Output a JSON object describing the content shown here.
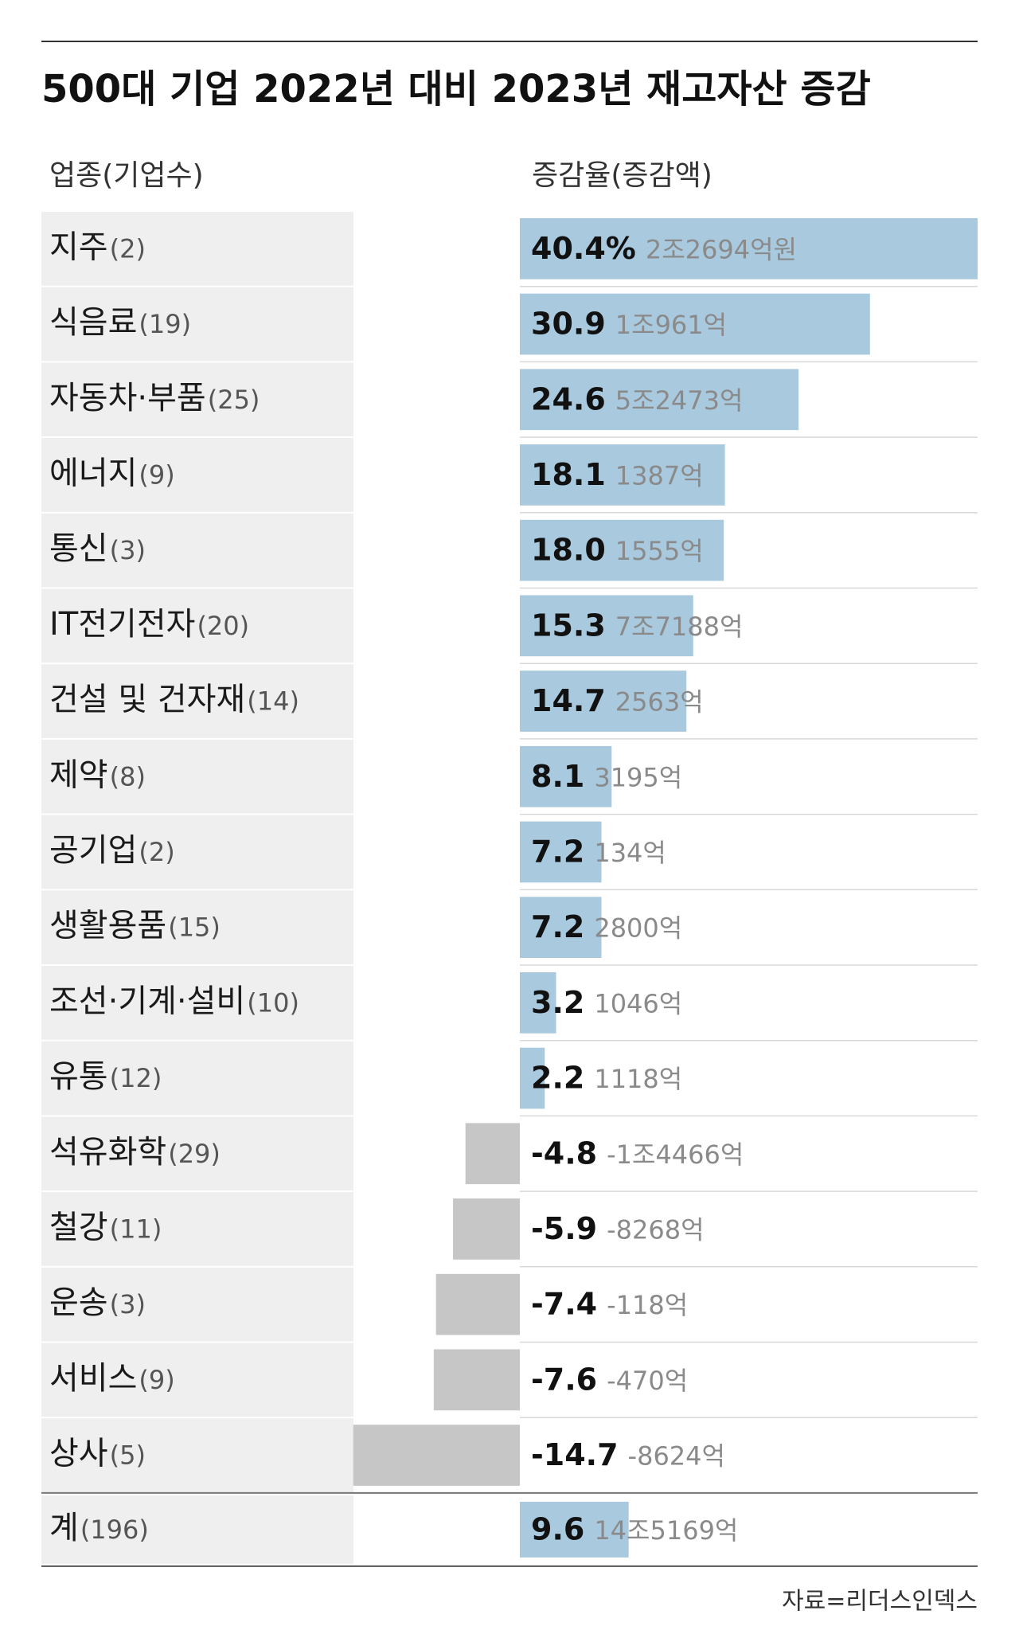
{
  "chart_data": {
    "type": "bar",
    "orientation": "horizontal",
    "title": "500대 기업 2022년 대비 2023년 재고자산 증감",
    "category_header": "업종(기업수)",
    "value_header": "증감율(증감액)",
    "categories": [
      "지주",
      "식음료",
      "자동차·부품",
      "에너지",
      "통신",
      "IT전기전자",
      "건설 및 건자재",
      "제약",
      "공기업",
      "생활용품",
      "조선·기계·설비",
      "유통",
      "석유화학",
      "철강",
      "운송",
      "서비스",
      "상사"
    ],
    "company_counts": [
      {
        "value": 2,
        "label": "(2)"
      },
      {
        "value": 19,
        "label": "(19)"
      },
      {
        "value": 25,
        "label": "(25)"
      },
      {
        "value": 9,
        "label": "(9)"
      },
      {
        "value": 3,
        "label": "(3)"
      },
      {
        "value": 20,
        "label": "(20)"
      },
      {
        "value": 14,
        "label": "(14)"
      },
      {
        "value": 8,
        "label": "(8)"
      },
      {
        "value": 2,
        "label": "(2)"
      },
      {
        "value": 15,
        "label": "(15)"
      },
      {
        "value": 10,
        "label": "(10)"
      },
      {
        "value": 12,
        "label": "(12)"
      },
      {
        "value": 29,
        "label": "(29)"
      },
      {
        "value": 11,
        "label": "(11)"
      },
      {
        "value": 3,
        "label": "(3)"
      },
      {
        "value": 9,
        "label": "(9)"
      },
      {
        "value": 5,
        "label": "(5)"
      }
    ],
    "values": [
      40.4,
      30.9,
      24.6,
      18.1,
      18.0,
      15.3,
      14.7,
      8.1,
      7.2,
      7.2,
      3.2,
      2.2,
      -4.8,
      -5.9,
      -7.4,
      -7.6,
      -14.7
    ],
    "value_labels": [
      "40.4%",
      "30.9",
      "24.6",
      "18.1",
      "18.0",
      "15.3",
      "14.7",
      "8.1",
      "7.2",
      "7.2",
      "3.2",
      "2.2",
      "-4.8",
      "-5.9",
      "-7.4",
      "-7.6",
      "-14.7"
    ],
    "amounts": [
      "2조2694억원",
      "1조961억",
      "5조2473억",
      "1387억",
      "1555억",
      "7조7188억",
      "2563억",
      "3195억",
      "134억",
      "2800억",
      "1046억",
      "1118억",
      "-1조4466억",
      "-8268억",
      "-118억",
      "-470억",
      "-8624억"
    ],
    "total": {
      "category": "계",
      "company_count": {
        "value": 196,
        "label": "(196)"
      },
      "value": 9.6,
      "amount": "14조5169억"
    },
    "positive_color": "#a9c9de",
    "negative_color": "#c6c6c6",
    "source": "자료=리더스인덱스"
  }
}
